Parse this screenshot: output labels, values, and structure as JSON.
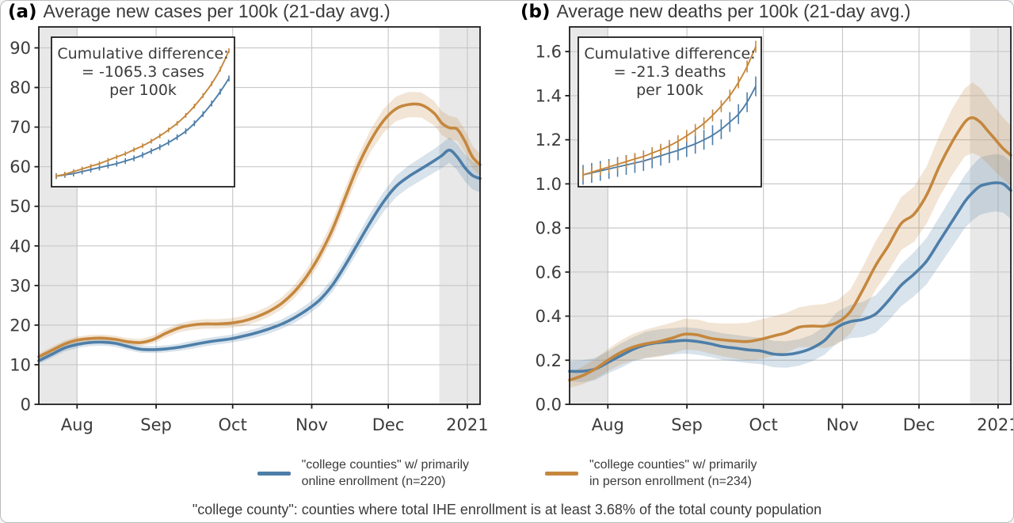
{
  "colors": {
    "online": "#4d7ea8",
    "in_person": "#c5873e",
    "band_opacity": 0.22,
    "shaded_period": "#d8d8d8",
    "grid": "#c9c9c9",
    "axis": "#1f1f1f",
    "text": "#3b3b3b"
  },
  "chart_data": [
    {
      "id": "cases",
      "type": "line",
      "panel_label": "(a)",
      "title": "Average new cases per 100k (21-day avg.)",
      "x_unit": "days since mid-July 2020",
      "xlim": [
        0,
        173
      ],
      "ylim": [
        0,
        95.3
      ],
      "x_ticks": [
        {
          "day": 15,
          "label": "Aug"
        },
        {
          "day": 46,
          "label": "Sep"
        },
        {
          "day": 76,
          "label": "Oct"
        },
        {
          "day": 107,
          "label": "Nov"
        },
        {
          "day": 137,
          "label": "Dec"
        },
        {
          "day": 168,
          "label": "2021"
        }
      ],
      "y_ticks": [
        {
          "v": 0,
          "label": "0"
        },
        {
          "v": 10,
          "label": "10"
        },
        {
          "v": 20,
          "label": "20"
        },
        {
          "v": 30,
          "label": "30"
        },
        {
          "v": 40,
          "label": "40"
        },
        {
          "v": 50,
          "label": "50"
        },
        {
          "v": 60,
          "label": "60"
        },
        {
          "v": 70,
          "label": "70"
        },
        {
          "v": 80,
          "label": "80"
        },
        {
          "v": 90,
          "label": "90"
        }
      ],
      "shaded_x_ranges": [
        [
          0,
          15
        ],
        [
          157,
          173
        ]
      ],
      "series": [
        {
          "name": "online",
          "x": [
            0,
            5,
            10,
            15,
            20,
            25,
            30,
            35,
            40,
            45,
            50,
            55,
            60,
            65,
            70,
            75,
            80,
            85,
            90,
            95,
            100,
            105,
            110,
            115,
            120,
            125,
            130,
            135,
            140,
            145,
            150,
            155,
            158,
            161,
            164,
            167,
            170,
            173
          ],
          "y": [
            11,
            12.6,
            14.2,
            15.1,
            15.6,
            15.7,
            15.4,
            14.6,
            13.9,
            13.8,
            14.0,
            14.4,
            15.0,
            15.6,
            16.1,
            16.5,
            17.2,
            18.0,
            19.0,
            20.2,
            21.8,
            23.8,
            26.3,
            30.0,
            35.0,
            40.5,
            46.0,
            51.0,
            55.0,
            57.5,
            59.5,
            61.5,
            62.8,
            64.2,
            62.5,
            59.8,
            57.8,
            57.0
          ],
          "ci": [
            0.8,
            0.9,
            0.9,
            0.9,
            0.9,
            0.9,
            0.9,
            0.9,
            0.9,
            0.9,
            0.9,
            0.9,
            1.0,
            1.0,
            1.0,
            1.0,
            1.1,
            1.1,
            1.2,
            1.2,
            1.3,
            1.4,
            1.5,
            1.7,
            1.9,
            2.1,
            2.3,
            2.5,
            2.7,
            2.8,
            2.9,
            3.0,
            3.1,
            3.2,
            3.3,
            3.4,
            3.5,
            3.5
          ]
        },
        {
          "name": "in_person",
          "x": [
            0,
            5,
            10,
            15,
            20,
            25,
            30,
            35,
            40,
            45,
            50,
            55,
            60,
            65,
            70,
            75,
            80,
            85,
            90,
            95,
            100,
            105,
            110,
            115,
            120,
            125,
            130,
            135,
            140,
            145,
            150,
            155,
            158,
            161,
            164,
            167,
            170,
            173
          ],
          "y": [
            12,
            13.6,
            15.2,
            16.2,
            16.6,
            16.7,
            16.4,
            15.8,
            15.6,
            16.4,
            18.0,
            19.3,
            20.0,
            20.3,
            20.3,
            20.5,
            21.0,
            22.0,
            23.4,
            25.4,
            28.3,
            32.3,
            37.5,
            44.0,
            52.0,
            60.0,
            66.5,
            71.5,
            74.6,
            75.7,
            75.6,
            73.5,
            71.0,
            69.8,
            69.5,
            66.5,
            62.5,
            60.5
          ],
          "ci": [
            0.8,
            0.9,
            0.9,
            0.9,
            0.9,
            0.9,
            0.9,
            0.9,
            0.9,
            1.0,
            1.1,
            1.1,
            1.2,
            1.2,
            1.2,
            1.2,
            1.3,
            1.3,
            1.4,
            1.5,
            1.6,
            1.8,
            2.0,
            2.2,
            2.4,
            2.6,
            2.8,
            3.0,
            3.1,
            3.2,
            3.2,
            3.1,
            3.0,
            3.0,
            2.9,
            2.9,
            2.8,
            2.8
          ]
        }
      ],
      "inset": {
        "text_lines": [
          "Cumulative difference:",
          "= -1065.3 cases",
          "per 100k"
        ],
        "t": [
          0,
          0.05,
          0.1,
          0.15,
          0.2,
          0.25,
          0.3,
          0.35,
          0.4,
          0.45,
          0.5,
          0.55,
          0.6,
          0.65,
          0.7,
          0.75,
          0.8,
          0.85,
          0.9,
          0.95,
          1
        ],
        "series": [
          {
            "name": "online",
            "err": 0.022,
            "y": [
              0.02,
              0.03,
              0.04,
              0.055,
              0.07,
              0.085,
              0.1,
              0.115,
              0.135,
              0.155,
              0.18,
              0.21,
              0.24,
              0.275,
              0.315,
              0.36,
              0.42,
              0.49,
              0.57,
              0.66,
              0.76
            ]
          },
          {
            "name": "in_person",
            "err": 0.018,
            "y": [
              0.02,
              0.035,
              0.055,
              0.075,
              0.095,
              0.115,
              0.14,
              0.165,
              0.19,
              0.22,
              0.25,
              0.285,
              0.325,
              0.37,
              0.42,
              0.48,
              0.55,
              0.63,
              0.72,
              0.83,
              0.97
            ]
          }
        ]
      }
    },
    {
      "id": "deaths",
      "type": "line",
      "panel_label": "(b)",
      "title": "Average new deaths per 100k (21-day avg.)",
      "x_unit": "days since mid-July 2020",
      "xlim": [
        0,
        173
      ],
      "ylim": [
        0,
        1.712
      ],
      "x_ticks": [
        {
          "day": 15,
          "label": "Aug"
        },
        {
          "day": 46,
          "label": "Sep"
        },
        {
          "day": 76,
          "label": "Oct"
        },
        {
          "day": 107,
          "label": "Nov"
        },
        {
          "day": 137,
          "label": "Dec"
        },
        {
          "day": 168,
          "label": "2021"
        }
      ],
      "y_ticks": [
        {
          "v": 0.0,
          "label": "0.0"
        },
        {
          "v": 0.2,
          "label": "0.2"
        },
        {
          "v": 0.4,
          "label": "0.4"
        },
        {
          "v": 0.6,
          "label": "0.6"
        },
        {
          "v": 0.8,
          "label": "0.8"
        },
        {
          "v": 1.0,
          "label": "1.0"
        },
        {
          "v": 1.2,
          "label": "1.2"
        },
        {
          "v": 1.4,
          "label": "1.4"
        },
        {
          "v": 1.6,
          "label": "1.6"
        }
      ],
      "shaded_x_ranges": [
        [
          0,
          15
        ],
        [
          157,
          173
        ]
      ],
      "series": [
        {
          "name": "online",
          "x": [
            0,
            5,
            10,
            15,
            20,
            25,
            30,
            35,
            40,
            45,
            50,
            55,
            60,
            65,
            70,
            75,
            80,
            85,
            90,
            95,
            100,
            105,
            110,
            115,
            120,
            125,
            130,
            135,
            140,
            145,
            150,
            155,
            158,
            161,
            164,
            167,
            170,
            173
          ],
          "y": [
            0.15,
            0.15,
            0.16,
            0.19,
            0.22,
            0.25,
            0.27,
            0.28,
            0.285,
            0.29,
            0.285,
            0.275,
            0.262,
            0.255,
            0.247,
            0.242,
            0.228,
            0.226,
            0.235,
            0.255,
            0.29,
            0.35,
            0.375,
            0.385,
            0.41,
            0.47,
            0.54,
            0.59,
            0.65,
            0.74,
            0.83,
            0.92,
            0.96,
            0.99,
            1.0,
            1.005,
            1.0,
            0.97
          ],
          "ci": [
            0.045,
            0.05,
            0.05,
            0.05,
            0.055,
            0.055,
            0.06,
            0.06,
            0.06,
            0.06,
            0.06,
            0.06,
            0.06,
            0.06,
            0.06,
            0.06,
            0.06,
            0.06,
            0.06,
            0.06,
            0.065,
            0.07,
            0.075,
            0.08,
            0.085,
            0.09,
            0.095,
            0.1,
            0.105,
            0.11,
            0.115,
            0.12,
            0.125,
            0.13,
            0.13,
            0.13,
            0.13,
            0.13
          ]
        },
        {
          "name": "in_person",
          "x": [
            0,
            5,
            10,
            15,
            20,
            25,
            30,
            35,
            40,
            45,
            50,
            55,
            60,
            65,
            70,
            75,
            80,
            85,
            90,
            95,
            100,
            105,
            110,
            115,
            120,
            125,
            130,
            135,
            140,
            145,
            150,
            155,
            158,
            161,
            164,
            167,
            170,
            173
          ],
          "y": [
            0.11,
            0.13,
            0.16,
            0.2,
            0.235,
            0.26,
            0.275,
            0.285,
            0.3,
            0.318,
            0.315,
            0.3,
            0.292,
            0.287,
            0.285,
            0.295,
            0.31,
            0.325,
            0.35,
            0.355,
            0.355,
            0.372,
            0.42,
            0.52,
            0.63,
            0.72,
            0.82,
            0.862,
            0.95,
            1.08,
            1.19,
            1.28,
            1.3,
            1.28,
            1.24,
            1.2,
            1.16,
            1.13
          ],
          "ci": [
            0.035,
            0.04,
            0.045,
            0.05,
            0.055,
            0.06,
            0.065,
            0.07,
            0.07,
            0.07,
            0.07,
            0.07,
            0.075,
            0.08,
            0.085,
            0.09,
            0.09,
            0.09,
            0.09,
            0.095,
            0.1,
            0.1,
            0.1,
            0.105,
            0.11,
            0.115,
            0.12,
            0.125,
            0.13,
            0.14,
            0.15,
            0.155,
            0.16,
            0.155,
            0.15,
            0.145,
            0.14,
            0.135
          ]
        }
      ],
      "inset": {
        "text_lines": [
          "Cumulative difference:",
          "= -21.3 deaths",
          "per 100k"
        ],
        "t": [
          0,
          0.05,
          0.1,
          0.15,
          0.2,
          0.25,
          0.3,
          0.35,
          0.4,
          0.45,
          0.5,
          0.55,
          0.6,
          0.65,
          0.7,
          0.75,
          0.8,
          0.85,
          0.9,
          0.95,
          1
        ],
        "series": [
          {
            "name": "online",
            "err": 0.075,
            "y": [
              0.03,
              0.045,
              0.06,
              0.075,
              0.09,
              0.105,
              0.12,
              0.135,
              0.155,
              0.175,
              0.195,
              0.215,
              0.24,
              0.265,
              0.295,
              0.33,
              0.375,
              0.43,
              0.49,
              0.58,
              0.7
            ]
          },
          {
            "name": "in_person",
            "err": 0.045,
            "y": [
              0.03,
              0.05,
              0.07,
              0.09,
              0.11,
              0.13,
              0.15,
              0.17,
              0.195,
              0.22,
              0.25,
              0.285,
              0.325,
              0.37,
              0.42,
              0.48,
              0.55,
              0.63,
              0.73,
              0.85,
              1.0
            ]
          }
        ]
      }
    }
  ],
  "legend": {
    "items": [
      {
        "series": "online",
        "color": "#4d7ea8",
        "lines": [
          "\"college counties\" w/ primarily",
          "online enrollment (n=220)"
        ]
      },
      {
        "series": "in_person",
        "color": "#c5873e",
        "lines": [
          "\"college counties\" w/ primarily",
          "in person enrollment (n=234)"
        ]
      }
    ]
  },
  "footnote": "\"college county\": counties where total IHE enrollment is at least 3.68% of the total county population"
}
